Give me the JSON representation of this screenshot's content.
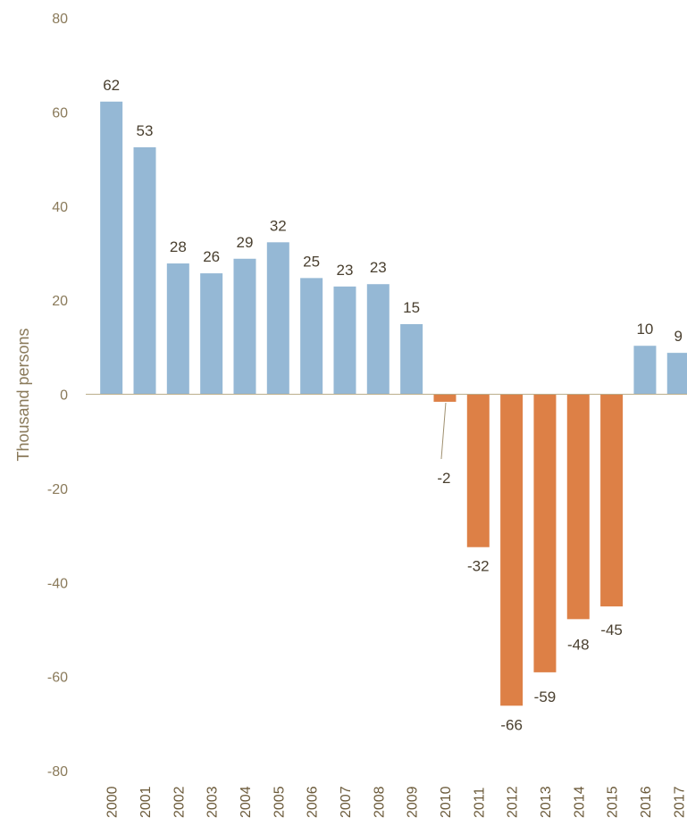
{
  "chart_data": {
    "type": "bar",
    "ylabel": "Thousand persons",
    "ylim": [
      -80,
      80
    ],
    "yticks": [
      80,
      60,
      40,
      20,
      0,
      -20,
      -40,
      -60,
      -80
    ],
    "categories": [
      "2000",
      "2001",
      "2002",
      "2003",
      "2004",
      "2005",
      "2006",
      "2007",
      "2008",
      "2009",
      "2010",
      "2011",
      "2012",
      "2013",
      "2014",
      "2015",
      "2016",
      "2017"
    ],
    "values": [
      62.2,
      52.5,
      27.8,
      25.7,
      28.8,
      32.3,
      24.7,
      22.9,
      23.4,
      14.9,
      -1.6,
      -32.5,
      -66.2,
      -59.1,
      -47.8,
      -45.1,
      10.3,
      8.8
    ],
    "data_labels": [
      "62",
      "53",
      "28",
      "26",
      "29",
      "32",
      "25",
      "23",
      "23",
      "15",
      "-2",
      "-32",
      "-66",
      "-59",
      "-48",
      "-45",
      "10",
      "9"
    ],
    "colors": {
      "positive": "#95b8d5",
      "negative": "#dd8046",
      "axis": "#bcae8c",
      "leader": "#a09070"
    }
  }
}
